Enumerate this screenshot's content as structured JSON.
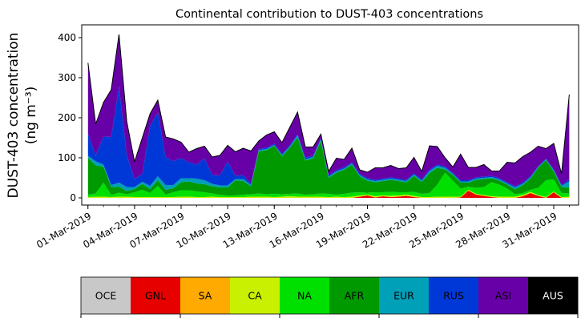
{
  "chart_data": {
    "type": "area",
    "stacked": true,
    "title": "Continental contribution to DUST-403 concentrations",
    "ylabel": "DUST-403 concentration",
    "ylabel_unit": "(ng m⁻³)",
    "xlabel": "",
    "ylim": [
      -18,
      432
    ],
    "yticks": [
      0,
      100,
      200,
      300,
      400
    ],
    "x_dates": [
      "01-Mar-2019",
      "01-Mar-2019",
      "02-Mar-2019",
      "02-Mar-2019",
      "03-Mar-2019",
      "03-Mar-2019",
      "04-Mar-2019",
      "04-Mar-2019",
      "05-Mar-2019",
      "05-Mar-2019",
      "06-Mar-2019",
      "06-Mar-2019",
      "07-Mar-2019",
      "07-Mar-2019",
      "08-Mar-2019",
      "08-Mar-2019",
      "09-Mar-2019",
      "09-Mar-2019",
      "10-Mar-2019",
      "10-Mar-2019",
      "11-Mar-2019",
      "11-Mar-2019",
      "12-Mar-2019",
      "12-Mar-2019",
      "13-Mar-2019",
      "13-Mar-2019",
      "14-Mar-2019",
      "14-Mar-2019",
      "15-Mar-2019",
      "15-Mar-2019",
      "16-Mar-2019",
      "16-Mar-2019",
      "17-Mar-2019",
      "17-Mar-2019",
      "18-Mar-2019",
      "18-Mar-2019",
      "19-Mar-2019",
      "19-Mar-2019",
      "20-Mar-2019",
      "20-Mar-2019",
      "21-Mar-2019",
      "21-Mar-2019",
      "22-Mar-2019",
      "22-Mar-2019",
      "23-Mar-2019",
      "23-Mar-2019",
      "24-Mar-2019",
      "24-Mar-2019",
      "25-Mar-2019",
      "25-Mar-2019",
      "26-Mar-2019",
      "26-Mar-2019",
      "27-Mar-2019",
      "27-Mar-2019",
      "28-Mar-2019",
      "28-Mar-2019",
      "29-Mar-2019",
      "29-Mar-2019",
      "30-Mar-2019",
      "30-Mar-2019",
      "31-Mar-2019",
      "31-Mar-2019",
      "01-Apr-2019"
    ],
    "x_hours": [
      0,
      12,
      0,
      12,
      0,
      12,
      0,
      12,
      0,
      12,
      0,
      12,
      0,
      12,
      0,
      12,
      0,
      12,
      0,
      12,
      0,
      12,
      0,
      12,
      0,
      12,
      0,
      12,
      0,
      12,
      0,
      12,
      0,
      12,
      0,
      12,
      0,
      12,
      0,
      12,
      0,
      12,
      0,
      12,
      0,
      12,
      0,
      12,
      0,
      12,
      0,
      12,
      0,
      12,
      0,
      12,
      0,
      12,
      0,
      12,
      0,
      12,
      0
    ],
    "xtick_labels": [
      "01-Mar-2019",
      "04-Mar-2019",
      "07-Mar-2019",
      "10-Mar-2019",
      "13-Mar-2019",
      "16-Mar-2019",
      "19-Mar-2019",
      "22-Mar-2019",
      "25-Mar-2019",
      "28-Mar-2019",
      "31-Mar-2019"
    ],
    "xtick_day_index": [
      0,
      3,
      6,
      9,
      12,
      15,
      18,
      21,
      24,
      27,
      30
    ],
    "legend_position": "bottom",
    "series": [
      {
        "name": "OCE",
        "color": "#c8c8c8",
        "values": [
          0,
          0,
          0,
          0,
          0,
          0,
          0,
          0,
          0,
          0,
          0,
          0,
          0,
          0,
          0,
          0,
          0,
          0,
          0,
          0,
          0,
          0,
          0,
          0,
          0,
          0,
          0,
          0,
          0,
          0,
          0,
          0,
          0,
          0,
          0,
          0,
          0,
          0,
          0,
          0,
          0,
          0,
          0,
          0,
          0,
          0,
          0,
          0,
          0,
          0,
          0,
          0,
          0,
          0,
          0,
          0,
          0,
          0,
          0,
          0,
          0,
          0,
          0
        ]
      },
      {
        "name": "GNL",
        "color": "#e60000",
        "values": [
          0,
          0,
          0,
          0,
          0,
          0,
          0,
          0,
          0,
          0,
          0,
          0,
          0,
          0,
          0,
          0,
          0,
          0,
          0,
          0,
          0,
          0,
          0,
          0,
          0,
          0,
          0,
          0,
          0,
          0,
          0,
          0,
          0,
          0,
          0,
          3,
          6,
          1,
          4,
          2,
          3,
          5,
          2,
          0,
          0,
          0,
          0,
          0,
          1,
          18,
          8,
          5,
          2,
          0,
          0,
          0,
          4,
          12,
          5,
          0,
          14,
          0,
          0
        ]
      },
      {
        "name": "SA",
        "color": "#ffaa00",
        "values": [
          0,
          0,
          0,
          0,
          0,
          0,
          0,
          0,
          0,
          0,
          0,
          0,
          0,
          0,
          0,
          0,
          0,
          0,
          0,
          0,
          0,
          0,
          0,
          0,
          0,
          0,
          0,
          0,
          0,
          0,
          0,
          0,
          0,
          0,
          0,
          0,
          0,
          0,
          0,
          0,
          0,
          0,
          0,
          0,
          0,
          0,
          0,
          0,
          0,
          0,
          0,
          0,
          0,
          0,
          0,
          0,
          0,
          0,
          0,
          0,
          0,
          0,
          0
        ]
      },
      {
        "name": "CA",
        "color": "#c8f000",
        "values": [
          2,
          3,
          3,
          2,
          3,
          3,
          2,
          2,
          2,
          2,
          2,
          2,
          3,
          3,
          2,
          2,
          3,
          2,
          2,
          2,
          2,
          3,
          3,
          3,
          2,
          3,
          4,
          3,
          3,
          3,
          3,
          2,
          3,
          2,
          3,
          3,
          2,
          3,
          2,
          3,
          3,
          3,
          3,
          2,
          2,
          3,
          3,
          3,
          2,
          2,
          2,
          2,
          2,
          3,
          3,
          3,
          3,
          3,
          2,
          2,
          2,
          2,
          3
        ]
      },
      {
        "name": "NA",
        "color": "#00e000",
        "values": [
          6,
          8,
          35,
          5,
          10,
          6,
          12,
          18,
          10,
          28,
          6,
          12,
          16,
          16,
          14,
          12,
          8,
          6,
          4,
          4,
          6,
          6,
          8,
          6,
          8,
          6,
          6,
          8,
          5,
          6,
          8,
          8,
          5,
          8,
          10,
          8,
          5,
          10,
          8,
          10,
          8,
          6,
          10,
          8,
          10,
          30,
          60,
          40,
          20,
          8,
          15,
          20,
          35,
          30,
          20,
          6,
          5,
          5,
          18,
          42,
          30,
          10,
          8
        ]
      },
      {
        "name": "AFR",
        "color": "#009900",
        "values": [
          92,
          70,
          40,
          20,
          15,
          8,
          8,
          15,
          10,
          14,
          12,
          10,
          20,
          22,
          20,
          20,
          18,
          18,
          20,
          38,
          34,
          20,
          105,
          110,
          120,
          95,
          115,
          140,
          85,
          90,
          130,
          40,
          55,
          60,
          70,
          40,
          30,
          25,
          28,
          30,
          28,
          25,
          40,
          30,
          50,
          42,
          8,
          14,
          15,
          10,
          20,
          20,
          10,
          10,
          10,
          12,
          20,
          28,
          50,
          50,
          20,
          15,
          15
        ]
      },
      {
        "name": "EUR",
        "color": "#00a0b8",
        "values": [
          5,
          10,
          5,
          5,
          10,
          10,
          5,
          5,
          8,
          10,
          12,
          8,
          10,
          8,
          12,
          10,
          6,
          5,
          5,
          3,
          5,
          3,
          3,
          3,
          2,
          3,
          3,
          5,
          3,
          3,
          5,
          3,
          3,
          3,
          3,
          3,
          3,
          3,
          3,
          3,
          3,
          3,
          3,
          3,
          5,
          5,
          4,
          3,
          3,
          3,
          3,
          3,
          3,
          3,
          3,
          5,
          3,
          3,
          2,
          2,
          3,
          3,
          15
        ]
      },
      {
        "name": "RUS",
        "color": "#0038d8",
        "values": [
          55,
          15,
          70,
          120,
          240,
          80,
          20,
          20,
          150,
          160,
          70,
          60,
          50,
          40,
          35,
          55,
          22,
          25,
          60,
          8,
          10,
          3,
          3,
          3,
          3,
          3,
          3,
          3,
          5,
          3,
          3,
          3,
          3,
          3,
          3,
          3,
          3,
          3,
          3,
          3,
          3,
          3,
          3,
          3,
          3,
          3,
          3,
          2,
          3,
          3,
          3,
          3,
          3,
          3,
          3,
          3,
          3,
          3,
          2,
          2,
          2,
          2,
          5
        ]
      },
      {
        "name": "ASI",
        "color": "#6800a8",
        "values": [
          177,
          78,
          85,
          118,
          130,
          83,
          43,
          90,
          30,
          30,
          50,
          55,
          40,
          25,
          40,
          30,
          45,
          50,
          40,
          60,
          67,
          82,
          20,
          32,
          30,
          28,
          45,
          55,
          26,
          22,
          10,
          10,
          30,
          20,
          35,
          10,
          15,
          30,
          27,
          30,
          25,
          30,
          40,
          20,
          60,
          45,
          22,
          15,
          65,
          32,
          25,
          30,
          12,
          18,
          50,
          58,
          65,
          60,
          50,
          25,
          65,
          28,
          212
        ]
      },
      {
        "name": "AUS",
        "color": "#000000",
        "values": [
          0,
          0,
          0,
          0,
          0,
          0,
          0,
          0,
          0,
          0,
          0,
          0,
          0,
          0,
          0,
          0,
          0,
          0,
          0,
          0,
          0,
          0,
          0,
          0,
          0,
          0,
          0,
          0,
          0,
          0,
          0,
          0,
          0,
          0,
          0,
          0,
          0,
          0,
          0,
          0,
          0,
          0,
          0,
          0,
          0,
          0,
          0,
          0,
          0,
          0,
          0,
          0,
          0,
          0,
          0,
          0,
          0,
          0,
          0,
          0,
          0,
          0,
          0
        ]
      }
    ]
  }
}
